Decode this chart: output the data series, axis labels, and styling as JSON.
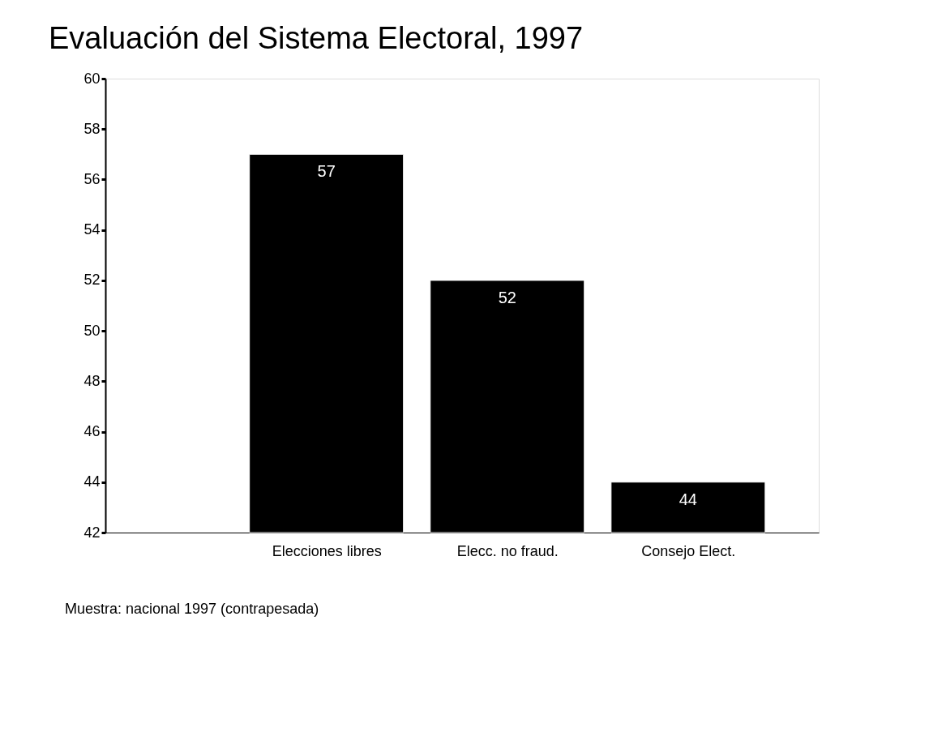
{
  "chart_data": {
    "type": "bar",
    "title": "Evaluación del Sistema Electoral, 1997",
    "categories": [
      "Elecciones libres",
      "Elecc. no fraud.",
      "Consejo Elect."
    ],
    "values": [
      57,
      52,
      44
    ],
    "color": "#000000",
    "ylim": [
      42,
      60
    ],
    "yticks": [
      42,
      44,
      46,
      48,
      50,
      52,
      54,
      56,
      58,
      60
    ],
    "grid": false,
    "data_labels": true,
    "annotations": [
      "Muestra: nacional 1997 (contrapesada)"
    ]
  }
}
